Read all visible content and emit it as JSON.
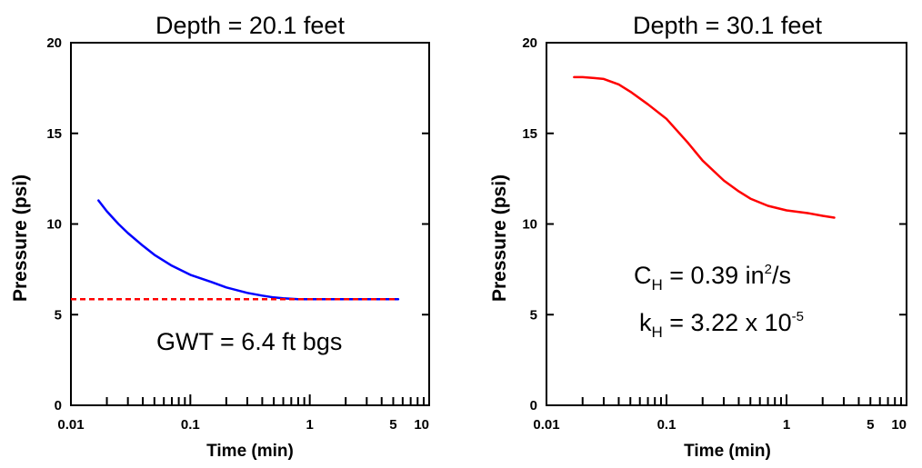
{
  "chart_data": [
    {
      "type": "line",
      "title": "Depth = 20.1 feet",
      "xlabel": "Time (min)",
      "ylabel": "Pressure (psi)",
      "x_scale": "log",
      "xlim": [
        0.01,
        10
      ],
      "ylim": [
        0,
        20
      ],
      "x_ticklabels": [
        "0.01",
        "0.1",
        "1",
        "5",
        "10"
      ],
      "y_ticklabels": [
        "0",
        "5",
        "10",
        "15",
        "20"
      ],
      "grid": false,
      "series": [
        {
          "color": "#0000ff",
          "style": "solid",
          "x": [
            0.017,
            0.02,
            0.025,
            0.03,
            0.04,
            0.05,
            0.07,
            0.1,
            0.15,
            0.2,
            0.3,
            0.4,
            0.5,
            0.6,
            0.8,
            1.0,
            1.5,
            2.0,
            3.0,
            4.0,
            5.5
          ],
          "y": [
            11.3,
            10.7,
            10.0,
            9.5,
            8.8,
            8.3,
            7.7,
            7.2,
            6.8,
            6.5,
            6.2,
            6.05,
            5.95,
            5.9,
            5.85,
            5.85,
            5.85,
            5.85,
            5.85,
            5.85,
            5.85
          ]
        },
        {
          "color": "#ff0000",
          "style": "dashed",
          "x": [
            0.01,
            5.5
          ],
          "y": [
            5.85,
            5.85
          ]
        }
      ],
      "annotations": [
        {
          "text": "GWT = 6.4 ft bgs"
        }
      ]
    },
    {
      "type": "line",
      "title": "Depth = 30.1 feet",
      "xlabel": "Time (min)",
      "ylabel": "Pressure (psi)",
      "x_scale": "log",
      "xlim": [
        0.01,
        10
      ],
      "ylim": [
        0,
        20
      ],
      "x_ticklabels": [
        "0.01",
        "0.1",
        "1",
        "5",
        "10"
      ],
      "y_ticklabels": [
        "0",
        "5",
        "10",
        "15",
        "20"
      ],
      "grid": false,
      "series": [
        {
          "color": "#ff0000",
          "style": "solid",
          "x": [
            0.017,
            0.02,
            0.025,
            0.03,
            0.04,
            0.05,
            0.07,
            0.1,
            0.15,
            0.2,
            0.3,
            0.4,
            0.5,
            0.7,
            1.0,
            1.5,
            2.0,
            2.5
          ],
          "y": [
            18.1,
            18.1,
            18.05,
            18.0,
            17.7,
            17.3,
            16.6,
            15.8,
            14.5,
            13.5,
            12.4,
            11.8,
            11.4,
            11.0,
            10.75,
            10.6,
            10.45,
            10.35
          ]
        }
      ],
      "annotations": [
        {
          "base": "C",
          "sub": "H",
          "rest": " = 0.39 in",
          "sup": "2",
          "tail": "/s"
        },
        {
          "base": "k",
          "sub": "H",
          "rest": " = 3.22 x 10",
          "sup": "-5",
          "tail": ""
        }
      ]
    }
  ]
}
